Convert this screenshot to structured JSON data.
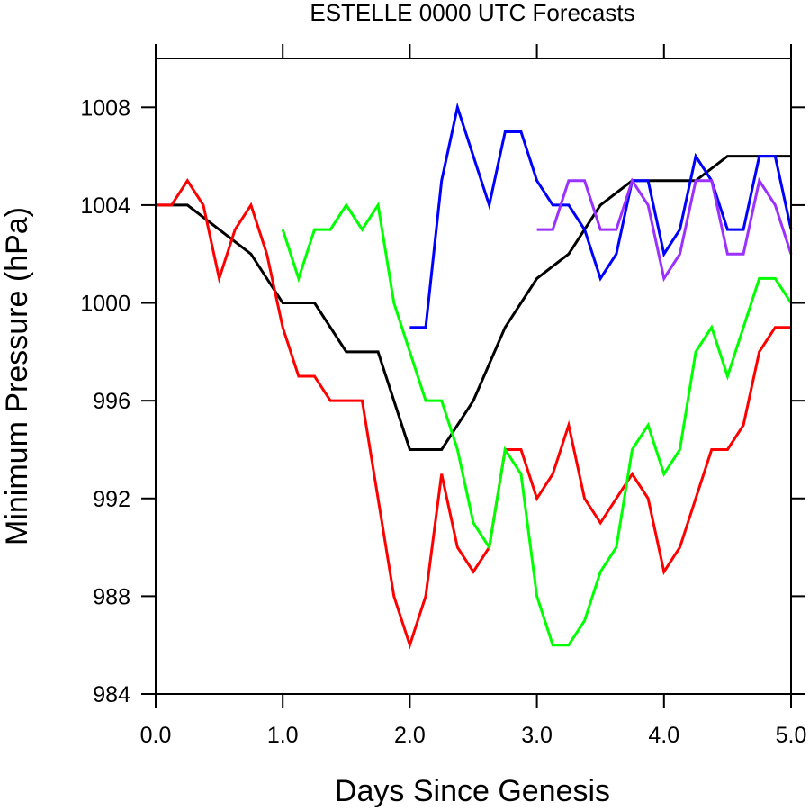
{
  "chart_data": {
    "type": "line",
    "title": "ESTELLE 0000 UTC Forecasts",
    "xlabel": "Days Since Genesis",
    "ylabel": "Minimum Pressure (hPa)",
    "xlim": [
      0,
      5
    ],
    "ylim": [
      984,
      1010
    ],
    "xticks": [
      0,
      1,
      2,
      3,
      4,
      5
    ],
    "xtick_labels": [
      "0.0",
      "1.0",
      "2.0",
      "3.0",
      "4.0",
      "5.0"
    ],
    "yticks": [
      984,
      988,
      992,
      996,
      1000,
      1004,
      1008
    ],
    "ytick_labels": [
      "984",
      "988",
      "992",
      "996",
      "1000",
      "1004",
      "1008"
    ],
    "grid": false,
    "legend": "none",
    "series": [
      {
        "color": "#000000",
        "x": [
          0,
          0.25,
          0.5,
          0.75,
          1,
          1.25,
          1.5,
          1.75,
          2,
          2.25,
          2.5,
          2.75,
          3,
          3.25,
          3.5,
          3.75,
          4,
          4.25,
          4.5,
          4.75,
          5
        ],
        "y": [
          1004,
          1004,
          1003,
          1002,
          1000,
          1000,
          998,
          998,
          994,
          994,
          996,
          999,
          1001,
          1002,
          1004,
          1005,
          1005,
          1005,
          1006,
          1006,
          1006
        ]
      },
      {
        "color": "#ff0000",
        "x": [
          0,
          0.125,
          0.25,
          0.375,
          0.5,
          0.625,
          0.75,
          0.875,
          1,
          1.125,
          1.25,
          1.375,
          1.5,
          1.625,
          1.75,
          1.875,
          2,
          2.125,
          2.25,
          2.375,
          2.5,
          2.625,
          2.75,
          2.875,
          3,
          3.125,
          3.25,
          3.375,
          3.5,
          3.625,
          3.75,
          3.875,
          4,
          4.125,
          4.25,
          4.375,
          4.5,
          4.625,
          4.75,
          4.875,
          5
        ],
        "y": [
          1004,
          1004,
          1005,
          1004,
          1001,
          1003,
          1004,
          1002,
          999,
          997,
          997,
          996,
          996,
          996,
          992,
          988,
          986,
          988,
          993,
          990,
          989,
          990,
          994,
          994,
          992,
          993,
          995,
          992,
          991,
          992,
          993,
          992,
          989,
          990,
          992,
          994,
          994,
          995,
          998,
          999,
          999
        ]
      },
      {
        "color": "#00ff00",
        "x": [
          1,
          1.125,
          1.25,
          1.375,
          1.5,
          1.625,
          1.75,
          1.875,
          2,
          2.125,
          2.25,
          2.375,
          2.5,
          2.625,
          2.75,
          2.875,
          3,
          3.125,
          3.25,
          3.375,
          3.5,
          3.625,
          3.75,
          3.875,
          4,
          4.125,
          4.25,
          4.375,
          4.5,
          4.625,
          4.75,
          4.875,
          5
        ],
        "y": [
          1003,
          1001,
          1003,
          1003,
          1004,
          1003,
          1004,
          1000,
          998,
          996,
          996,
          994,
          991,
          990,
          994,
          993,
          988,
          986,
          986,
          987,
          989,
          990,
          994,
          995,
          993,
          994,
          998,
          999,
          997,
          999,
          1001,
          1001,
          1000
        ]
      },
      {
        "color": "#0000ff",
        "x": [
          2,
          2.125,
          2.25,
          2.375,
          2.5,
          2.625,
          2.75,
          2.875,
          3,
          3.125,
          3.25,
          3.375,
          3.5,
          3.625,
          3.75,
          3.875,
          4,
          4.125,
          4.25,
          4.375,
          4.5,
          4.625,
          4.75,
          4.875,
          5
        ],
        "y": [
          999,
          999,
          1005,
          1008,
          1006,
          1004,
          1007,
          1007,
          1005,
          1004,
          1004,
          1003,
          1001,
          1002,
          1005,
          1005,
          1002,
          1003,
          1006,
          1005,
          1003,
          1003,
          1006,
          1006,
          1003
        ]
      },
      {
        "color": "#9b30ff",
        "x": [
          3,
          3.125,
          3.25,
          3.375,
          3.5,
          3.625,
          3.75,
          3.875,
          4,
          4.125,
          4.25,
          4.375,
          4.5,
          4.625,
          4.75,
          4.875,
          5
        ],
        "y": [
          1003,
          1003,
          1005,
          1005,
          1003,
          1003,
          1005,
          1004,
          1001,
          1002,
          1005,
          1005,
          1002,
          1002,
          1005,
          1004,
          1002
        ]
      }
    ]
  }
}
